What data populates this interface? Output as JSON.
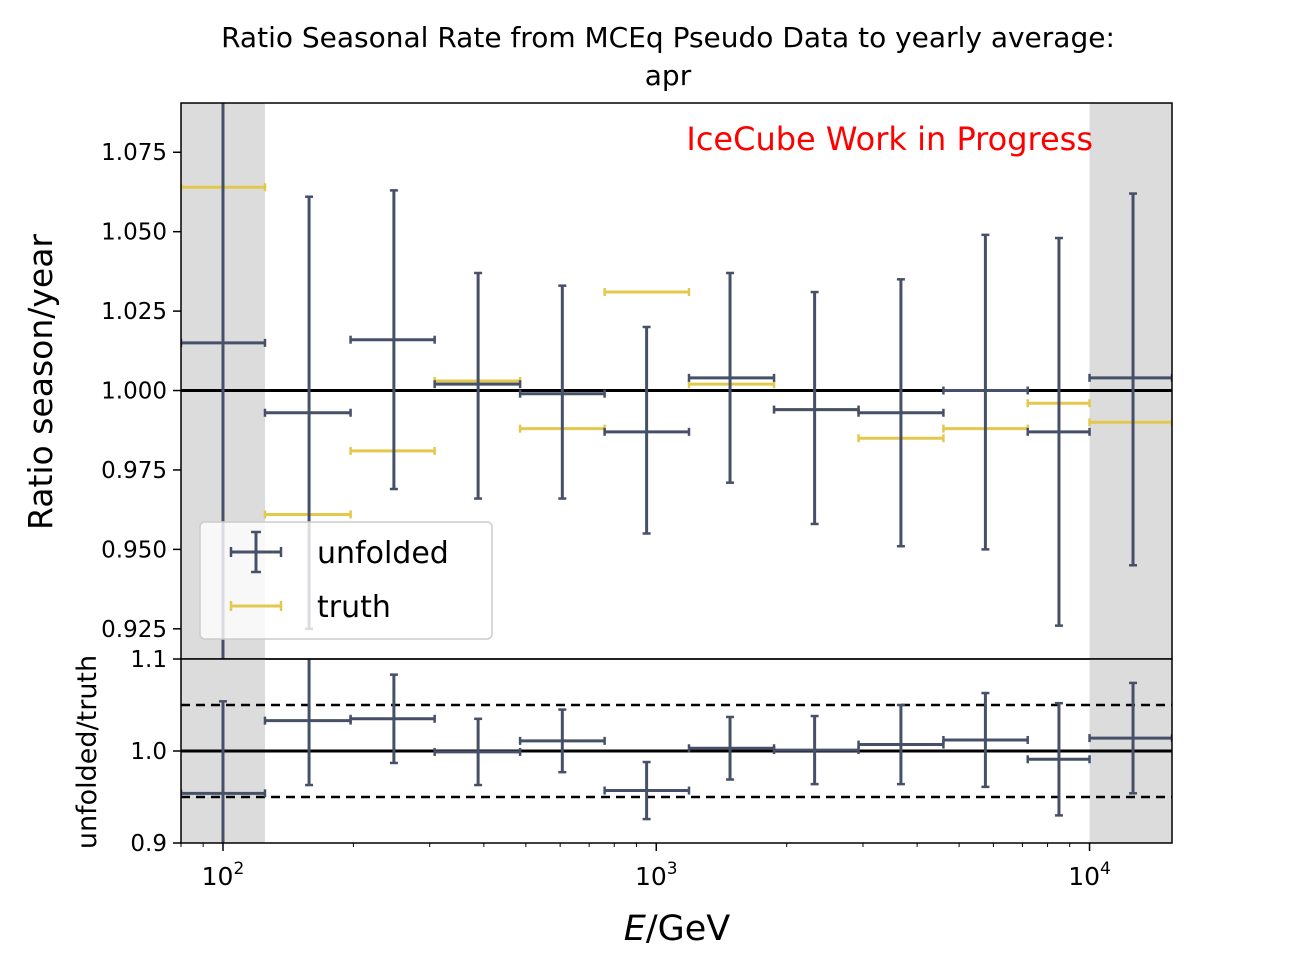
{
  "title_line1": "Ratio Seasonal Rate from MCEq Pseudo Data to yearly average:",
  "title_line2": "apr",
  "watermark": "IceCube Work in Progress",
  "colors": {
    "unfolded": "#465068",
    "truth": "#e2c94e",
    "shade": "#dcdcdc",
    "watermark": "#ff0000"
  },
  "chart_data": [
    {
      "type": "scatter",
      "panel": "main",
      "xlabel_italic": "E",
      "xlabel_rest": "/GeV",
      "ylabel": "Ratio season/year",
      "xscale": "log",
      "xlim": [
        80,
        15500
      ],
      "ylim": [
        0.9155,
        1.0905
      ],
      "yticks": [
        "0.925",
        "0.950",
        "0.975",
        "1.000",
        "1.025",
        "1.050",
        "1.075"
      ],
      "reference_line": 1.0,
      "shaded_x_ranges": [
        [
          80,
          125
        ],
        [
          10000,
          15500
        ]
      ],
      "legend": {
        "position": "lower-left",
        "entries": [
          "unfolded",
          "truth"
        ]
      },
      "bin_edges": [
        80,
        125,
        197,
        308,
        485,
        760,
        1190,
        1870,
        2930,
        4600,
        7200,
        10000,
        15500
      ],
      "series": [
        {
          "name": "unfolded",
          "x": [
            100,
            158,
            248,
            388,
            607,
            950,
            1480,
            2320,
            3670,
            5750,
            8500,
            12600
          ],
          "y": [
            1.015,
            0.993,
            1.016,
            1.002,
            0.999,
            0.987,
            1.004,
            0.994,
            0.993,
            1.0,
            0.987,
            1.004
          ],
          "yerr_low": [
            0.106,
            0.068,
            0.047,
            0.036,
            0.033,
            0.032,
            0.033,
            0.036,
            0.042,
            0.05,
            0.061,
            0.059
          ],
          "yerr_high": [
            0.106,
            0.068,
            0.047,
            0.035,
            0.034,
            0.033,
            0.033,
            0.037,
            0.042,
            0.049,
            0.061,
            0.058
          ]
        },
        {
          "name": "truth",
          "y": [
            1.064,
            0.961,
            0.981,
            1.003,
            0.988,
            1.031,
            1.002,
            0.994,
            0.985,
            0.988,
            0.996,
            0.99
          ]
        }
      ]
    },
    {
      "type": "scatter",
      "panel": "ratio",
      "ylabel": "unfolded/truth",
      "xscale": "log",
      "xlim": [
        80,
        15500
      ],
      "ylim": [
        0.9,
        1.1
      ],
      "yticks": [
        "0.9",
        "1.0",
        "1.1"
      ],
      "xticks": [
        {
          "value": 100,
          "base": "10",
          "exp": "2"
        },
        {
          "value": 1000,
          "base": "10",
          "exp": "3"
        },
        {
          "value": 10000,
          "base": "10",
          "exp": "4"
        }
      ],
      "reference_line": 1.0,
      "dashed_lines": [
        0.95,
        1.05
      ],
      "series": [
        {
          "name": "unfolded/truth",
          "y": [
            0.954,
            1.033,
            1.035,
            0.999,
            1.011,
            0.957,
            1.003,
            1.001,
            1.007,
            1.012,
            0.991,
            1.014
          ],
          "yerr_low": [
            0.1,
            0.07,
            0.048,
            0.036,
            0.034,
            0.031,
            0.034,
            0.037,
            0.043,
            0.051,
            0.061,
            0.06
          ],
          "yerr_high": [
            0.1,
            0.07,
            0.048,
            0.036,
            0.034,
            0.031,
            0.034,
            0.037,
            0.043,
            0.051,
            0.061,
            0.06
          ]
        }
      ]
    }
  ]
}
